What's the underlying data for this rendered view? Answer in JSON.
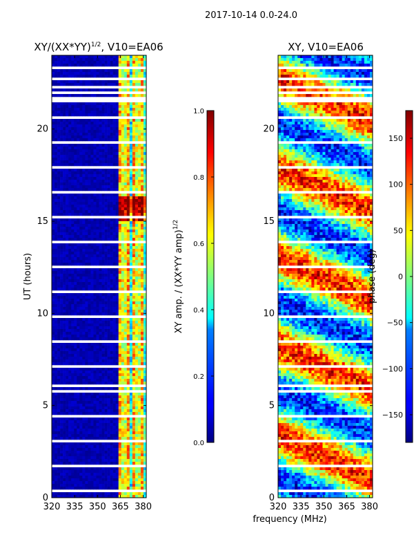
{
  "suptitle": "2017-10-14 0.0-24.0",
  "chart_data": [
    {
      "type": "heatmap",
      "title_main": "XY/(XX*YY)",
      "title_exp": "1/2",
      "title_tail": ", V10=EA06",
      "xlabel": "",
      "ylabel": "UT (hours)",
      "xlim": [
        320,
        382
      ],
      "ylim": [
        0,
        24
      ],
      "xticks": [
        320,
        335,
        350,
        365,
        380
      ],
      "yticks": [
        0,
        5,
        10,
        15,
        20
      ],
      "colorbar": {
        "label_main": "XY amp. / (XX*YY amp)",
        "label_exp": "1/2",
        "range": [
          0.0,
          1.0
        ],
        "ticks": [
          "0.0",
          "0.2",
          "0.4",
          "0.6",
          "0.8",
          "1.0"
        ],
        "tick_values": [
          0.0,
          0.2,
          0.4,
          0.6,
          0.8,
          1.0
        ],
        "colormap": "jet"
      },
      "gap_bands_hours": [
        [
          21.5,
          21.8
        ],
        [
          22.2,
          22.4
        ],
        [
          22.6,
          22.8
        ],
        [
          6.0,
          6.2
        ],
        [
          6.4,
          6.5
        ]
      ]
    },
    {
      "type": "heatmap",
      "title_main": "XY, V10=EA06",
      "xlabel": "frequency (MHz)",
      "ylabel": "",
      "xlim": [
        320,
        382
      ],
      "ylim": [
        0,
        24
      ],
      "xticks": [
        320,
        335,
        350,
        365,
        380
      ],
      "yticks": [
        0,
        5,
        10,
        15,
        20
      ],
      "colorbar": {
        "label_main": "phase (deg)",
        "range": [
          -180,
          180
        ],
        "ticks": [
          "−150",
          "−100",
          "−50",
          "0",
          "50",
          "100",
          "150"
        ],
        "tick_values": [
          -150,
          -100,
          -50,
          0,
          50,
          100,
          150
        ],
        "colormap": "jet"
      },
      "gap_bands_hours": [
        [
          21.5,
          21.8
        ],
        [
          22.2,
          22.4
        ],
        [
          22.6,
          22.8
        ],
        [
          6.0,
          6.2
        ],
        [
          6.4,
          6.5
        ]
      ]
    }
  ]
}
